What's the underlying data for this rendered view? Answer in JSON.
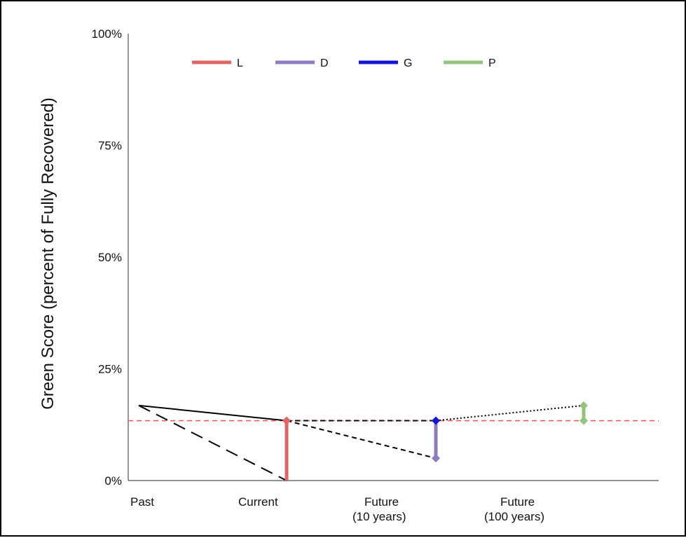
{
  "chart_data": {
    "type": "line",
    "title": "",
    "xlabel": "",
    "ylabel": "Green Score (percent of Fully Recovered)",
    "ylim": [
      0,
      100
    ],
    "y_ticks": [
      "0%",
      "25%",
      "50%",
      "75%",
      "100%"
    ],
    "categories": [
      {
        "lines": [
          "Past"
        ]
      },
      {
        "lines": [
          "Current"
        ]
      },
      {
        "lines": [
          "Future",
          "(10 years)"
        ]
      },
      {
        "lines": [
          "Future",
          "(100 years)"
        ]
      }
    ],
    "category_x": [
      0,
      1,
      2,
      3
    ],
    "reference_line": {
      "y": 13.4,
      "color": "#ff4d4d",
      "style": "dashed"
    },
    "trajectories": [
      {
        "style": "solid",
        "points": [
          [
            0,
            16.8
          ],
          [
            1,
            13.4
          ]
        ]
      },
      {
        "style": "longdash",
        "points": [
          [
            0,
            16.8
          ],
          [
            1,
            0
          ]
        ]
      },
      {
        "style": "dashed",
        "points": [
          [
            1,
            13.4
          ],
          [
            2,
            5
          ]
        ]
      },
      {
        "style": "dashed",
        "points": [
          [
            1,
            13.4
          ],
          [
            2,
            13.4
          ]
        ]
      },
      {
        "style": "dotted",
        "points": [
          [
            2,
            13.4
          ],
          [
            3,
            16.8
          ]
        ]
      }
    ],
    "series": [
      {
        "name": "L",
        "color": "#e06666",
        "x": 1,
        "from": 13.4,
        "to": 0
      },
      {
        "name": "D",
        "color": "#8e7cc3",
        "x": 2,
        "from": 13.4,
        "to": 5
      },
      {
        "name": "G",
        "color": "#1515d4",
        "x": 2,
        "from": 13.4,
        "to": 13.4
      },
      {
        "name": "P",
        "color": "#93c47d",
        "x": 3,
        "from": 13.4,
        "to": 16.8
      }
    ],
    "legend": {
      "position": "top"
    }
  }
}
